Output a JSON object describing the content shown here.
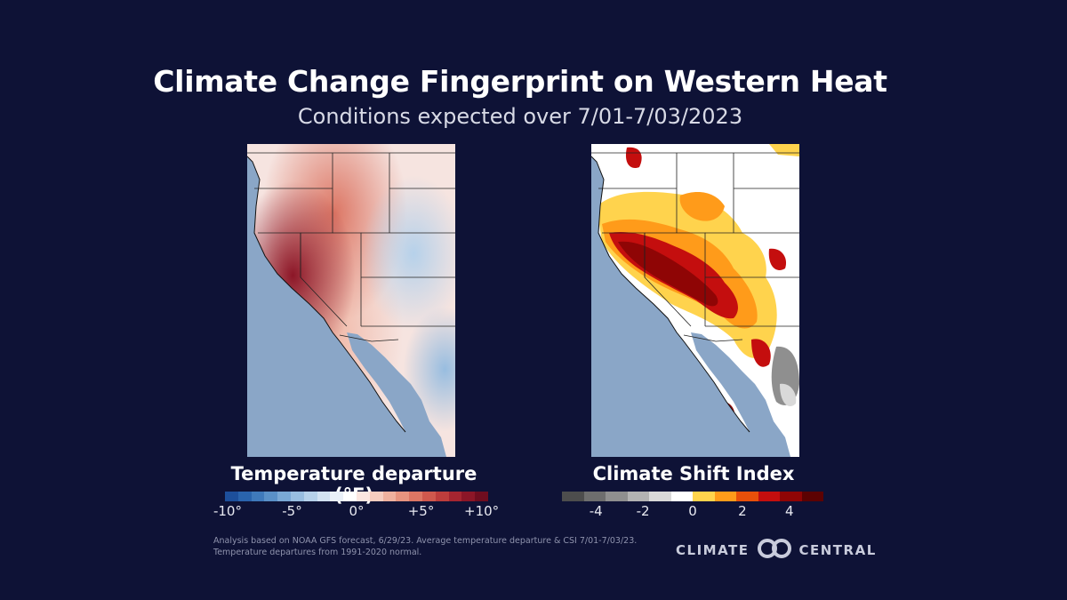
{
  "title": "Climate Change Fingerprint on Western Heat",
  "subtitle": "Conditions expected over 7/01-7/03/2023",
  "maps": {
    "left": {
      "legend_title": "Temperature departure (°F)",
      "colorbar": [
        "#1d4f9b",
        "#2a64ad",
        "#3f79bb",
        "#5a90c8",
        "#7aa8d5",
        "#98bde0",
        "#b6d1ea",
        "#d2e2f2",
        "#eaf0f8",
        "#ffffff",
        "#fbe6e0",
        "#f6cdbf",
        "#efb19e",
        "#e7947f",
        "#dc7664",
        "#cf584d",
        "#bd3d3c",
        "#a52530",
        "#8c1627",
        "#6f0d1f"
      ],
      "ticks": [
        "-10°",
        "-5°",
        "0°",
        "+5°",
        "+10°"
      ]
    },
    "right": {
      "legend_title": "Climate Shift Index",
      "colorbar": [
        "#4d4d4d",
        "#6e6e6e",
        "#8f8f8f",
        "#b3b3b3",
        "#d9d9d9",
        "#ffffff",
        "#ffd34d",
        "#ff9b1a",
        "#e8500a",
        "#c40e0e",
        "#8f0505",
        "#5c0202"
      ],
      "ticks": [
        "-4",
        "-2",
        "0",
        "2",
        "4"
      ]
    }
  },
  "colors": {
    "background": "#0e1236",
    "ocean": "#8aa6c7"
  },
  "footnote": {
    "line1": "Analysis based on NOAA GFS forecast, 6/29/23. Average temperature departure  & CSI 7/01-7/03/23.",
    "line2": "Temperature departures from 1991-2020 normal."
  },
  "logo": {
    "left": "CLIMATE",
    "right": "CENTRAL",
    "icon": "climate-central-logo-icon"
  }
}
